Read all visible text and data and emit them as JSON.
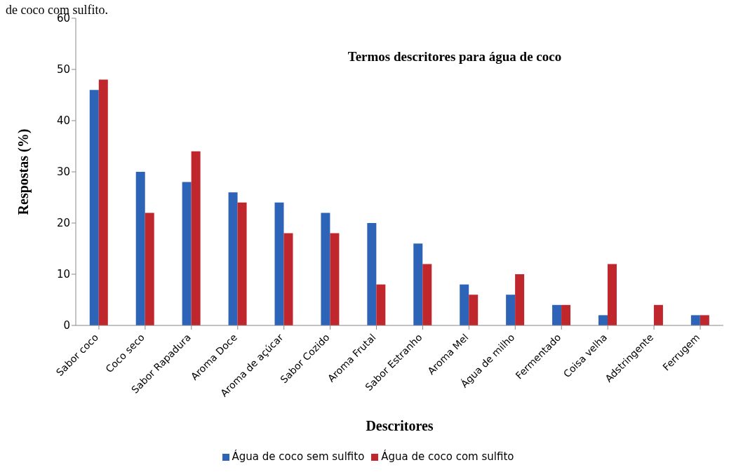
{
  "chart_data": {
    "type": "bar",
    "title": "Termos descritores para água de coco",
    "xlabel": "Descritores",
    "ylabel": "Respostas (%)",
    "annotations": [
      "de coco com sulfito."
    ],
    "categories": [
      "Sabor coco",
      "Coco seco",
      "Sabor Rapadura",
      "Aroma Doce",
      "Aroma de açúcar",
      "Sabor Cozido",
      "Aroma Frutal",
      "Sabor Estranho",
      "Aroma Mel",
      "Água de milho",
      "Fermentado",
      "Coisa velha",
      "Adstringente",
      "Ferrugem"
    ],
    "series": [
      {
        "name": "Água de coco sem sulfito",
        "color": "#2e64b8",
        "values": [
          46,
          30,
          28,
          26,
          24,
          22,
          20,
          16,
          8,
          6,
          4,
          2,
          0,
          2
        ]
      },
      {
        "name": "Água de coco com sulfito",
        "color": "#c0272d",
        "values": [
          48,
          22,
          34,
          24,
          18,
          18,
          8,
          12,
          6,
          10,
          4,
          12,
          4,
          2
        ]
      }
    ],
    "ylim": [
      0,
      60
    ],
    "yticks": [
      0,
      10,
      20,
      30,
      40,
      50,
      60
    ],
    "grid": false,
    "legend": "bottom"
  }
}
